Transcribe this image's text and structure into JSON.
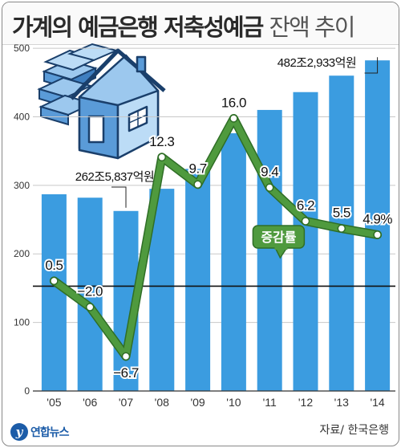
{
  "title": "가계의 예금은행 저축성예금",
  "subtitle": "잔액 추이",
  "source": "자료/ 한국은행",
  "logo_text": "연합뉴스",
  "logo_mark": "y",
  "colors": {
    "bar": "#3b9ce0",
    "line": "#4f9a3e",
    "line_dark": "#2f6e26",
    "ref_line": "#111111",
    "grid": "#c8c8c8"
  },
  "chart_data": {
    "type": "bar",
    "categories": [
      "'05",
      "'06",
      "'07",
      "'08",
      "'09",
      "'10",
      "'11",
      "'12",
      "'13",
      "'14"
    ],
    "values": [
      287,
      282,
      262.6,
      295,
      324,
      376,
      410,
      436,
      460,
      482.3
    ],
    "ylim": [
      0,
      520
    ],
    "yticks": [
      0,
      100,
      200,
      300,
      400,
      500
    ],
    "grid": true,
    "bar_annotations": [
      {
        "index": 2,
        "text": "262조5,837억원"
      },
      {
        "index": 9,
        "text": "482조2,933억원"
      }
    ],
    "line_series": {
      "name": "증감률",
      "values": [
        0.5,
        -2.0,
        -6.7,
        12.3,
        9.7,
        16.0,
        9.4,
        6.2,
        5.5,
        4.9
      ],
      "labels": [
        "0.5",
        "−2.0",
        "−6.7",
        "12.3",
        "9.7",
        "16.0",
        "9.4",
        "6.2",
        "5.5",
        "4.9%"
      ],
      "ylim": [
        -10,
        24
      ],
      "reference_value": 0
    }
  }
}
